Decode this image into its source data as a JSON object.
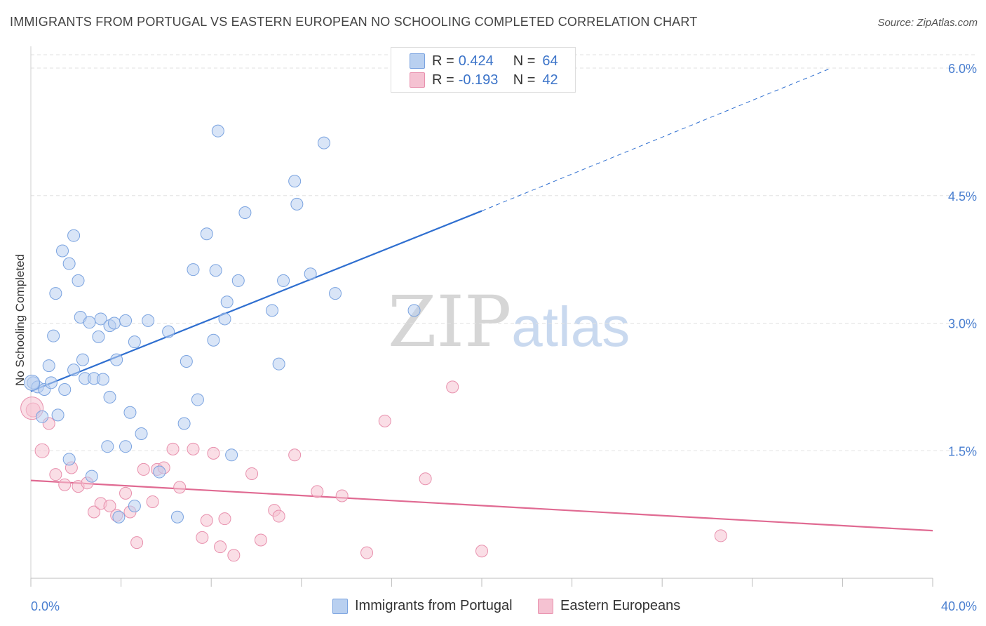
{
  "header": {
    "title": "IMMIGRANTS FROM PORTUGAL VS EASTERN EUROPEAN NO SCHOOLING COMPLETED CORRELATION CHART",
    "source": "Source: ZipAtlas.com"
  },
  "watermark": {
    "zip": "ZIP",
    "atlas": "atlas"
  },
  "legend": {
    "rows": [
      {
        "r_label": "R =",
        "r_value": "0.424",
        "n_label": "N =",
        "n_value": "64"
      },
      {
        "r_label": "R =",
        "r_value": "-0.193",
        "n_label": "N =",
        "n_value": "42"
      }
    ]
  },
  "bottom_legend": {
    "series1": "Immigrants from Portugal",
    "series2": "Eastern Europeans"
  },
  "colors": {
    "blue_fill": "#b9d0f0",
    "blue_stroke": "#7aa3e0",
    "blue_line": "#2f6fd0",
    "pink_fill": "#f5c2d2",
    "pink_stroke": "#e890ad",
    "pink_line": "#e06a92",
    "axis_text": "#4a7fd0",
    "grid": "#e2e2e2"
  },
  "chart_data": {
    "type": "scatter",
    "title": "IMMIGRANTS FROM PORTUGAL VS EASTERN EUROPEAN NO SCHOOLING COMPLETED CORRELATION CHART",
    "xlabel": "",
    "ylabel": "No Schooling Completed",
    "xlim": [
      0,
      40
    ],
    "ylim": [
      0,
      6.25
    ],
    "x_tick_labels": [
      "0.0%",
      "40.0%"
    ],
    "y_ticks": [
      1.5,
      3.0,
      4.5,
      6.0
    ],
    "y_tick_labels": [
      "1.5%",
      "3.0%",
      "4.5%",
      "6.0%"
    ],
    "grid": true,
    "series": [
      {
        "name": "Immigrants from Portugal",
        "r": 0.424,
        "n": 64,
        "trend": {
          "x0": 0,
          "y0": 2.2,
          "x1": 20,
          "y1": 4.32,
          "dashed_to_x": 35.5,
          "dashed_to_y": 6.0
        },
        "points": [
          {
            "x": 0.1,
            "y": 2.3
          },
          {
            "x": 0.3,
            "y": 2.25
          },
          {
            "x": 0.5,
            "y": 1.9
          },
          {
            "x": 0.6,
            "y": 2.22
          },
          {
            "x": 0.8,
            "y": 2.5
          },
          {
            "x": 0.9,
            "y": 2.3
          },
          {
            "x": 1.0,
            "y": 2.85
          },
          {
            "x": 1.1,
            "y": 3.35
          },
          {
            "x": 1.2,
            "y": 1.92
          },
          {
            "x": 1.4,
            "y": 3.85
          },
          {
            "x": 1.5,
            "y": 2.22
          },
          {
            "x": 1.7,
            "y": 1.4
          },
          {
            "x": 1.7,
            "y": 3.7
          },
          {
            "x": 1.9,
            "y": 2.45
          },
          {
            "x": 1.9,
            "y": 4.03
          },
          {
            "x": 2.1,
            "y": 3.5
          },
          {
            "x": 2.2,
            "y": 3.07
          },
          {
            "x": 2.3,
            "y": 2.57
          },
          {
            "x": 2.4,
            "y": 2.35
          },
          {
            "x": 2.6,
            "y": 3.01
          },
          {
            "x": 2.7,
            "y": 1.2
          },
          {
            "x": 2.8,
            "y": 2.35
          },
          {
            "x": 3.0,
            "y": 2.84
          },
          {
            "x": 3.1,
            "y": 3.05
          },
          {
            "x": 3.2,
            "y": 2.34
          },
          {
            "x": 3.4,
            "y": 1.55
          },
          {
            "x": 3.5,
            "y": 2.97
          },
          {
            "x": 3.5,
            "y": 2.13
          },
          {
            "x": 3.7,
            "y": 3.0
          },
          {
            "x": 3.8,
            "y": 2.57
          },
          {
            "x": 3.9,
            "y": 0.72
          },
          {
            "x": 4.2,
            "y": 3.03
          },
          {
            "x": 4.2,
            "y": 1.55
          },
          {
            "x": 4.4,
            "y": 1.95
          },
          {
            "x": 4.6,
            "y": 2.78
          },
          {
            "x": 4.6,
            "y": 0.85
          },
          {
            "x": 4.9,
            "y": 1.7
          },
          {
            "x": 5.2,
            "y": 3.03
          },
          {
            "x": 5.7,
            "y": 1.25
          },
          {
            "x": 6.1,
            "y": 2.9
          },
          {
            "x": 6.5,
            "y": 0.72
          },
          {
            "x": 6.8,
            "y": 1.82
          },
          {
            "x": 6.9,
            "y": 2.55
          },
          {
            "x": 7.2,
            "y": 3.63
          },
          {
            "x": 7.4,
            "y": 2.1
          },
          {
            "x": 7.8,
            "y": 4.05
          },
          {
            "x": 8.1,
            "y": 2.8
          },
          {
            "x": 8.2,
            "y": 3.62
          },
          {
            "x": 8.3,
            "y": 5.26
          },
          {
            "x": 8.6,
            "y": 3.05
          },
          {
            "x": 8.7,
            "y": 3.25
          },
          {
            "x": 8.9,
            "y": 1.45
          },
          {
            "x": 9.2,
            "y": 3.5
          },
          {
            "x": 9.5,
            "y": 4.3
          },
          {
            "x": 10.7,
            "y": 3.15
          },
          {
            "x": 11.0,
            "y": 2.52
          },
          {
            "x": 11.2,
            "y": 3.5
          },
          {
            "x": 11.7,
            "y": 4.67
          },
          {
            "x": 11.8,
            "y": 4.4
          },
          {
            "x": 12.4,
            "y": 3.58
          },
          {
            "x": 13.0,
            "y": 5.12
          },
          {
            "x": 13.5,
            "y": 3.35
          },
          {
            "x": 17.0,
            "y": 3.15
          },
          {
            "x": 0.05,
            "y": 2.3
          }
        ]
      },
      {
        "name": "Eastern Europeans",
        "r": -0.193,
        "n": 42,
        "trend": {
          "x0": 0,
          "y0": 1.15,
          "x1": 40,
          "y1": 0.56
        },
        "points": [
          {
            "x": 0.1,
            "y": 1.98
          },
          {
            "x": 0.5,
            "y": 1.5
          },
          {
            "x": 0.8,
            "y": 1.82
          },
          {
            "x": 1.1,
            "y": 1.22
          },
          {
            "x": 1.5,
            "y": 1.1
          },
          {
            "x": 1.8,
            "y": 1.3
          },
          {
            "x": 2.1,
            "y": 1.08
          },
          {
            "x": 2.5,
            "y": 1.12
          },
          {
            "x": 2.8,
            "y": 0.78
          },
          {
            "x": 3.1,
            "y": 0.88
          },
          {
            "x": 3.5,
            "y": 0.85
          },
          {
            "x": 3.8,
            "y": 0.74
          },
          {
            "x": 4.2,
            "y": 1.0
          },
          {
            "x": 4.4,
            "y": 0.78
          },
          {
            "x": 4.7,
            "y": 0.42
          },
          {
            "x": 5.0,
            "y": 1.28
          },
          {
            "x": 5.4,
            "y": 0.9
          },
          {
            "x": 5.6,
            "y": 1.28
          },
          {
            "x": 5.9,
            "y": 1.3
          },
          {
            "x": 6.3,
            "y": 1.52
          },
          {
            "x": 6.6,
            "y": 1.07
          },
          {
            "x": 7.2,
            "y": 1.52
          },
          {
            "x": 7.6,
            "y": 0.48
          },
          {
            "x": 7.8,
            "y": 0.68
          },
          {
            "x": 8.1,
            "y": 1.47
          },
          {
            "x": 8.4,
            "y": 0.37
          },
          {
            "x": 8.6,
            "y": 0.7
          },
          {
            "x": 9.0,
            "y": 0.27
          },
          {
            "x": 9.8,
            "y": 1.23
          },
          {
            "x": 10.2,
            "y": 0.45
          },
          {
            "x": 10.8,
            "y": 0.8
          },
          {
            "x": 11.0,
            "y": 0.73
          },
          {
            "x": 11.7,
            "y": 1.45
          },
          {
            "x": 12.7,
            "y": 1.02
          },
          {
            "x": 13.8,
            "y": 0.97
          },
          {
            "x": 14.9,
            "y": 0.3
          },
          {
            "x": 15.7,
            "y": 1.85
          },
          {
            "x": 17.5,
            "y": 1.17
          },
          {
            "x": 18.7,
            "y": 2.25
          },
          {
            "x": 20.0,
            "y": 0.32
          },
          {
            "x": 30.6,
            "y": 0.5
          },
          {
            "x": 0.05,
            "y": 2.0
          }
        ]
      }
    ]
  }
}
